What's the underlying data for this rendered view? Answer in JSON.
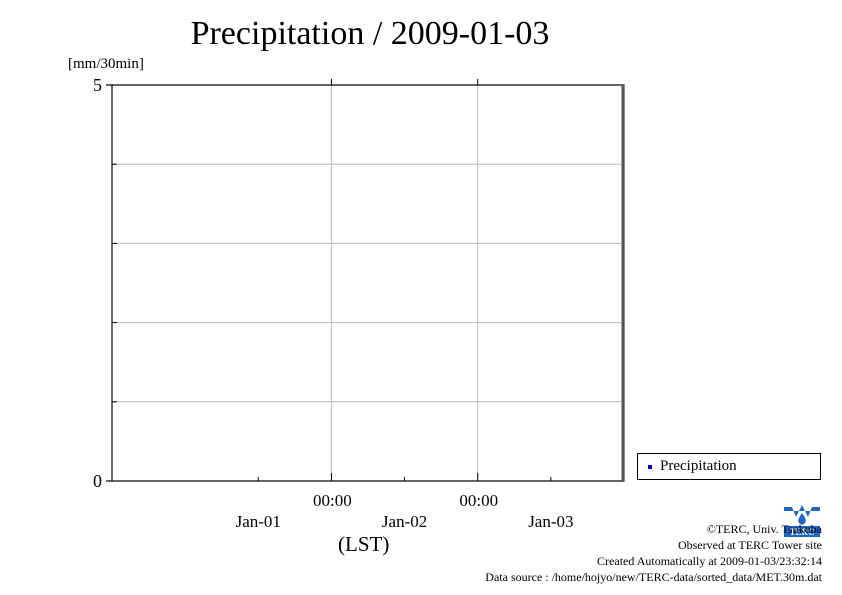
{
  "chart_data": {
    "type": "line",
    "title": "Precipitation / 2009-01-03",
    "ylabel": "[mm/30min]",
    "xlabel": "(LST)",
    "ylim": [
      0,
      5
    ],
    "yticks": [
      {
        "value": 0,
        "label": "0"
      },
      {
        "value": 5,
        "label": "5"
      }
    ],
    "y_gridlines": [
      1,
      2,
      3,
      4
    ],
    "x_range": [
      "2008-12-31 12:00",
      "2009-01-04 00:00"
    ],
    "x_time_ticks": [
      {
        "time": "2009-01-02 00:00",
        "label": "00:00"
      },
      {
        "time": "2009-01-03 00:00",
        "label": "00:00"
      }
    ],
    "x_date_labels": [
      {
        "time": "2009-01-01 12:00",
        "label": "Jan-01"
      },
      {
        "time": "2009-01-02 12:00",
        "label": "Jan-02"
      },
      {
        "time": "2009-01-03 12:00",
        "label": "Jan-03"
      }
    ],
    "grid": true,
    "legend_position": "bottom-right",
    "series": [
      {
        "name": "Precipitation",
        "color": "#0000cc",
        "x": [],
        "y": []
      }
    ]
  },
  "credits": {
    "copyright": "©TERC, Univ. Tsukuba",
    "observed": "Observed at TERC Tower site",
    "created": "Created Automatically at 2009-01-03/23:32:14",
    "source": "Data source : /home/hojyo/new/TERC-data/sorted_data/MET.30m.dat"
  },
  "logo": {
    "text": "TERC",
    "color": "#1e66c8"
  },
  "colors": {
    "grid": "#bbbbbb",
    "axis": "#000000"
  }
}
